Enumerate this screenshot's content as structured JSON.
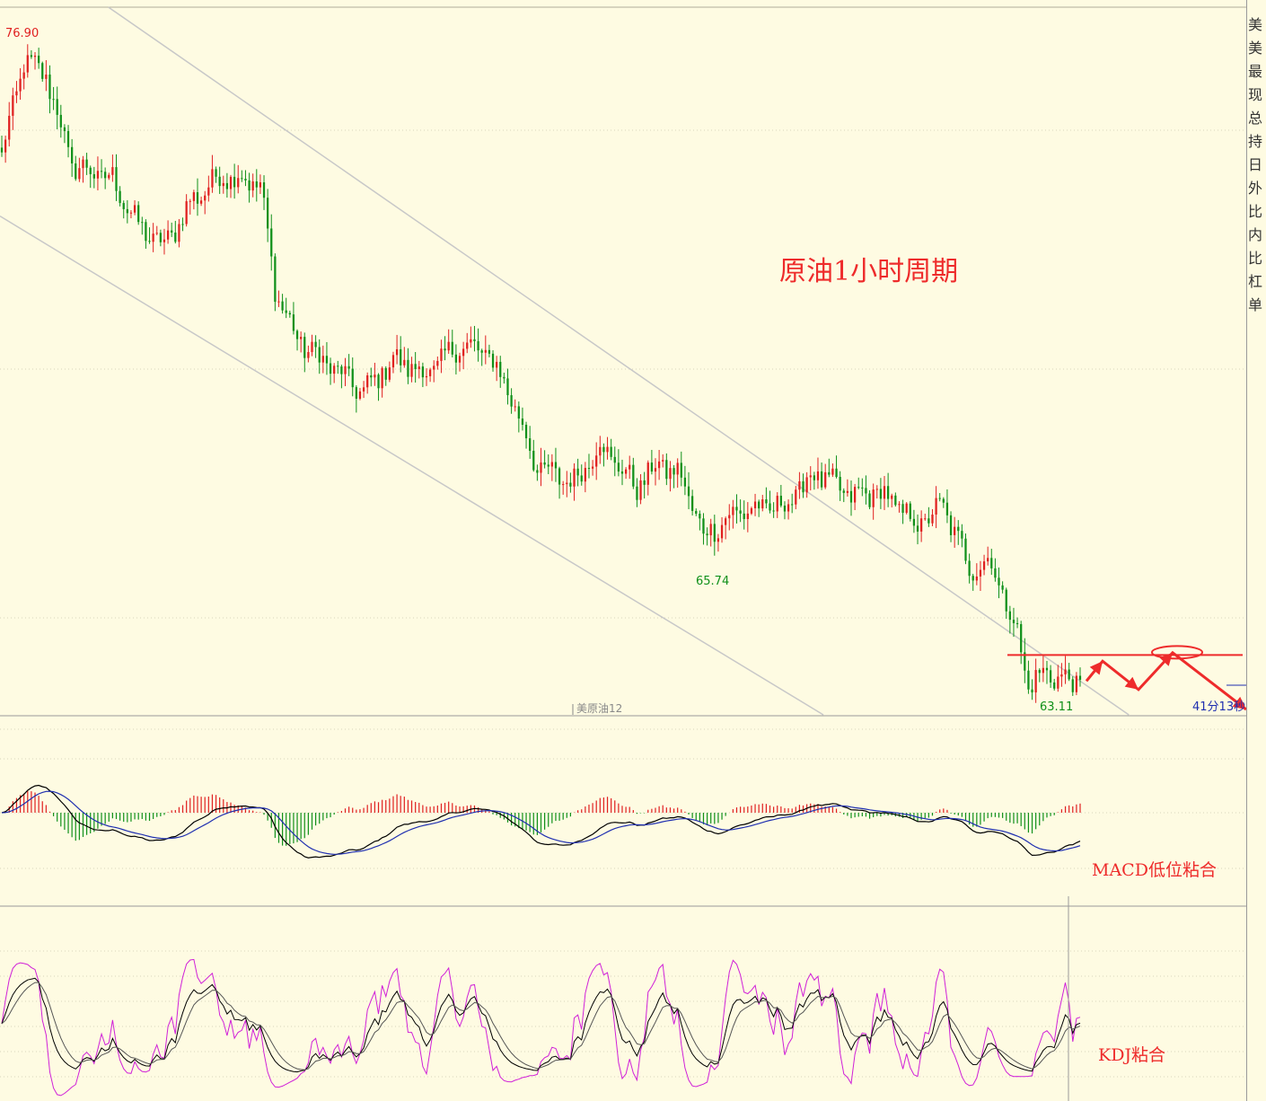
{
  "colors": {
    "background": "#fefbe2",
    "up_candle": "#e02020",
    "down_candle": "#10901a",
    "channel": "#c8c8c8",
    "grid": "#d8d4bc",
    "annotation": "#ee2b2b",
    "macd_dif": "#000000",
    "macd_dea": "#1f2fb0",
    "kdj_k": "#000000",
    "kdj_d": "#555555",
    "kdj_j": "#d020d8"
  },
  "chart_data": [
    {
      "type": "candlestick",
      "title": "原油1小时周期",
      "instrument_label": "美原油12",
      "y_range": [
        62.7,
        77.5
      ],
      "high_label": "76.90",
      "mid_label": "65.74",
      "low_label": "63.11",
      "countdown": "41分13秒",
      "horizontal_line_level": 63.85,
      "channel_upper": {
        "from_bar": 0,
        "from_price": 79.1,
        "to_bar": 292,
        "to_price": 63.3
      },
      "channel_lower": {
        "from_bar": 0,
        "from_price": 73.1,
        "to_bar": 292,
        "to_price": 59.3
      },
      "close_path": [
        [
          0,
          74.4
        ],
        [
          6,
          76.4
        ],
        [
          12,
          76.1
        ],
        [
          19,
          74.2
        ],
        [
          30,
          73.9
        ],
        [
          37,
          72.9
        ],
        [
          44,
          72.5
        ],
        [
          52,
          73.5
        ],
        [
          60,
          74.0
        ],
        [
          70,
          73.8
        ],
        [
          74,
          71.6
        ],
        [
          80,
          70.5
        ],
        [
          90,
          69.9
        ],
        [
          98,
          69.4
        ],
        [
          106,
          70.1
        ],
        [
          115,
          69.8
        ],
        [
          124,
          70.4
        ],
        [
          132,
          70.2
        ],
        [
          138,
          69.3
        ],
        [
          145,
          67.8
        ],
        [
          155,
          67.5
        ],
        [
          162,
          68.3
        ],
        [
          172,
          67.4
        ],
        [
          178,
          67.9
        ],
        [
          184,
          67.6
        ],
        [
          190,
          66.4
        ],
        [
          200,
          66.9
        ],
        [
          212,
          67.0
        ],
        [
          220,
          67.7
        ],
        [
          230,
          67.2
        ],
        [
          238,
          67.3
        ],
        [
          248,
          66.6
        ],
        [
          255,
          67.0
        ],
        [
          262,
          65.7
        ],
        [
          268,
          65.8
        ],
        [
          275,
          64.3
        ],
        [
          278,
          63.2
        ],
        [
          283,
          63.5
        ],
        [
          288,
          63.3
        ]
      ],
      "forecast_path_price": [
        63.3,
        63.72,
        63.12,
        63.9,
        62.7
      ],
      "x_label": "",
      "y_label": ""
    },
    {
      "type": "line",
      "title": "",
      "annotation": "MACD低位粘合",
      "series": [
        {
          "key": "DIF"
        },
        {
          "key": "DEA"
        }
      ],
      "histogram": true
    },
    {
      "type": "line",
      "title": "",
      "annotation": "KDJ粘合",
      "series": [
        {
          "key": "K"
        },
        {
          "key": "D"
        },
        {
          "key": "J"
        }
      ]
    }
  ],
  "side_panel": {
    "chars": [
      "美",
      "美",
      "最",
      "现",
      "总",
      "持",
      "日",
      "外",
      "比",
      "内",
      "比",
      "杠",
      "单"
    ]
  }
}
